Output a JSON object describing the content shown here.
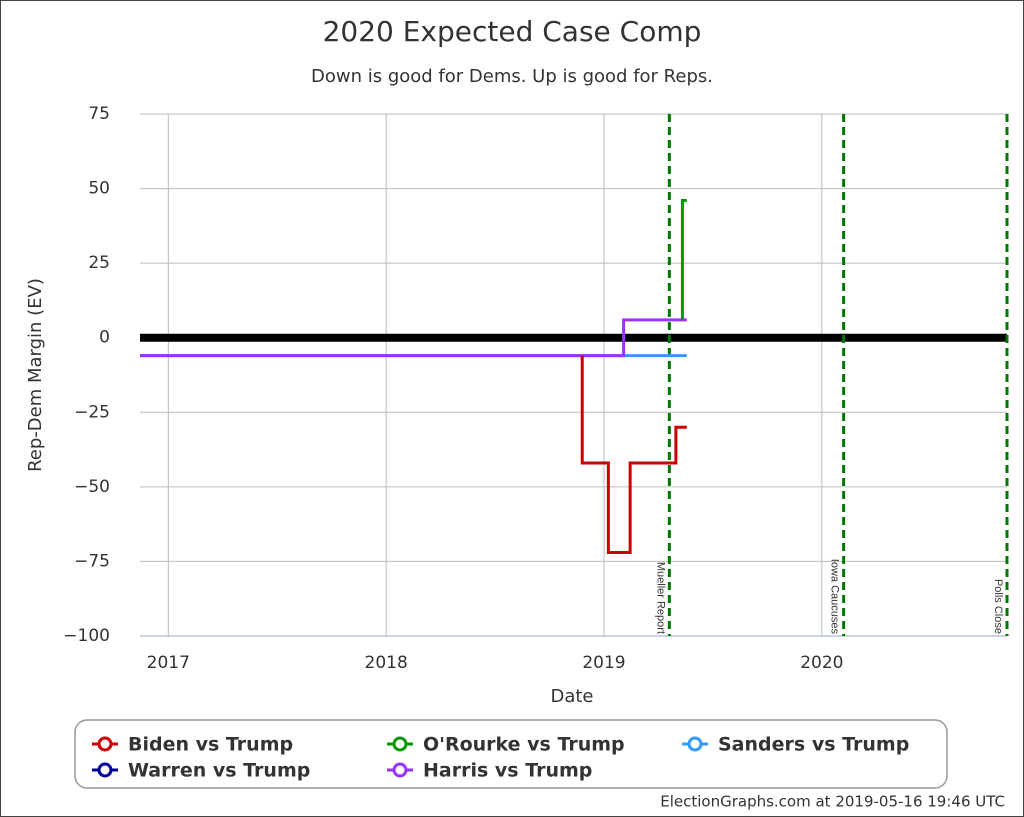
{
  "chart_data": {
    "type": "line",
    "title": "2020 Expected Case Comp",
    "subtitle": "Down is good for Dems. Up is good for Reps.",
    "x_label": "Date",
    "y_label": "Rep-Dem Margin (EV)",
    "footer": "ElectionGraphs.com at 2019-05-16 19:46 UTC",
    "xlim": [
      2016.87,
      2020.85
    ],
    "xticks": [
      2017,
      2018,
      2019,
      2020
    ],
    "ylim": [
      -100,
      75
    ],
    "yticks": [
      75,
      50,
      25,
      0,
      {
        "value": -25,
        "label": "−25"
      },
      {
        "value": -50,
        "label": "−50"
      },
      {
        "value": -75,
        "label": "−75"
      },
      {
        "value": -100,
        "label": "−100"
      }
    ],
    "grid": true,
    "series": [
      {
        "name": "Biden vs Trump",
        "color": "#cc0000",
        "x": [
          2018.9,
          2018.9,
          2019.02,
          2019.02,
          2019.12,
          2019.12,
          2019.33,
          2019.33,
          2019.38
        ],
        "values": [
          -6,
          -42,
          -42,
          -72,
          -72,
          -42,
          -42,
          -30,
          -30
        ]
      },
      {
        "name": "O'Rourke vs Trump",
        "color": "#009900",
        "x": [
          2019.36,
          2019.36,
          2019.38
        ],
        "values": [
          6,
          46,
          46
        ]
      },
      {
        "name": "Sanders vs Trump",
        "color": "#3399ff",
        "x": [
          2016.87,
          2019.38
        ],
        "values": [
          -6,
          -6
        ]
      },
      {
        "name": "Warren vs Trump",
        "color": "#000099",
        "x": [],
        "values": []
      },
      {
        "name": "Harris vs Trump",
        "color": "#9933ff",
        "x": [
          2016.87,
          2019.09,
          2019.09,
          2019.38
        ],
        "values": [
          -6,
          -6,
          6,
          6
        ]
      }
    ],
    "annotations": [
      {
        "x": 2019.3,
        "label": "Mueller Report"
      },
      {
        "x": 2020.1,
        "label": "Iowa Caucuses"
      },
      {
        "x": 2020.85,
        "label": "Polls Close"
      }
    ],
    "annotation_color": "#007700"
  }
}
